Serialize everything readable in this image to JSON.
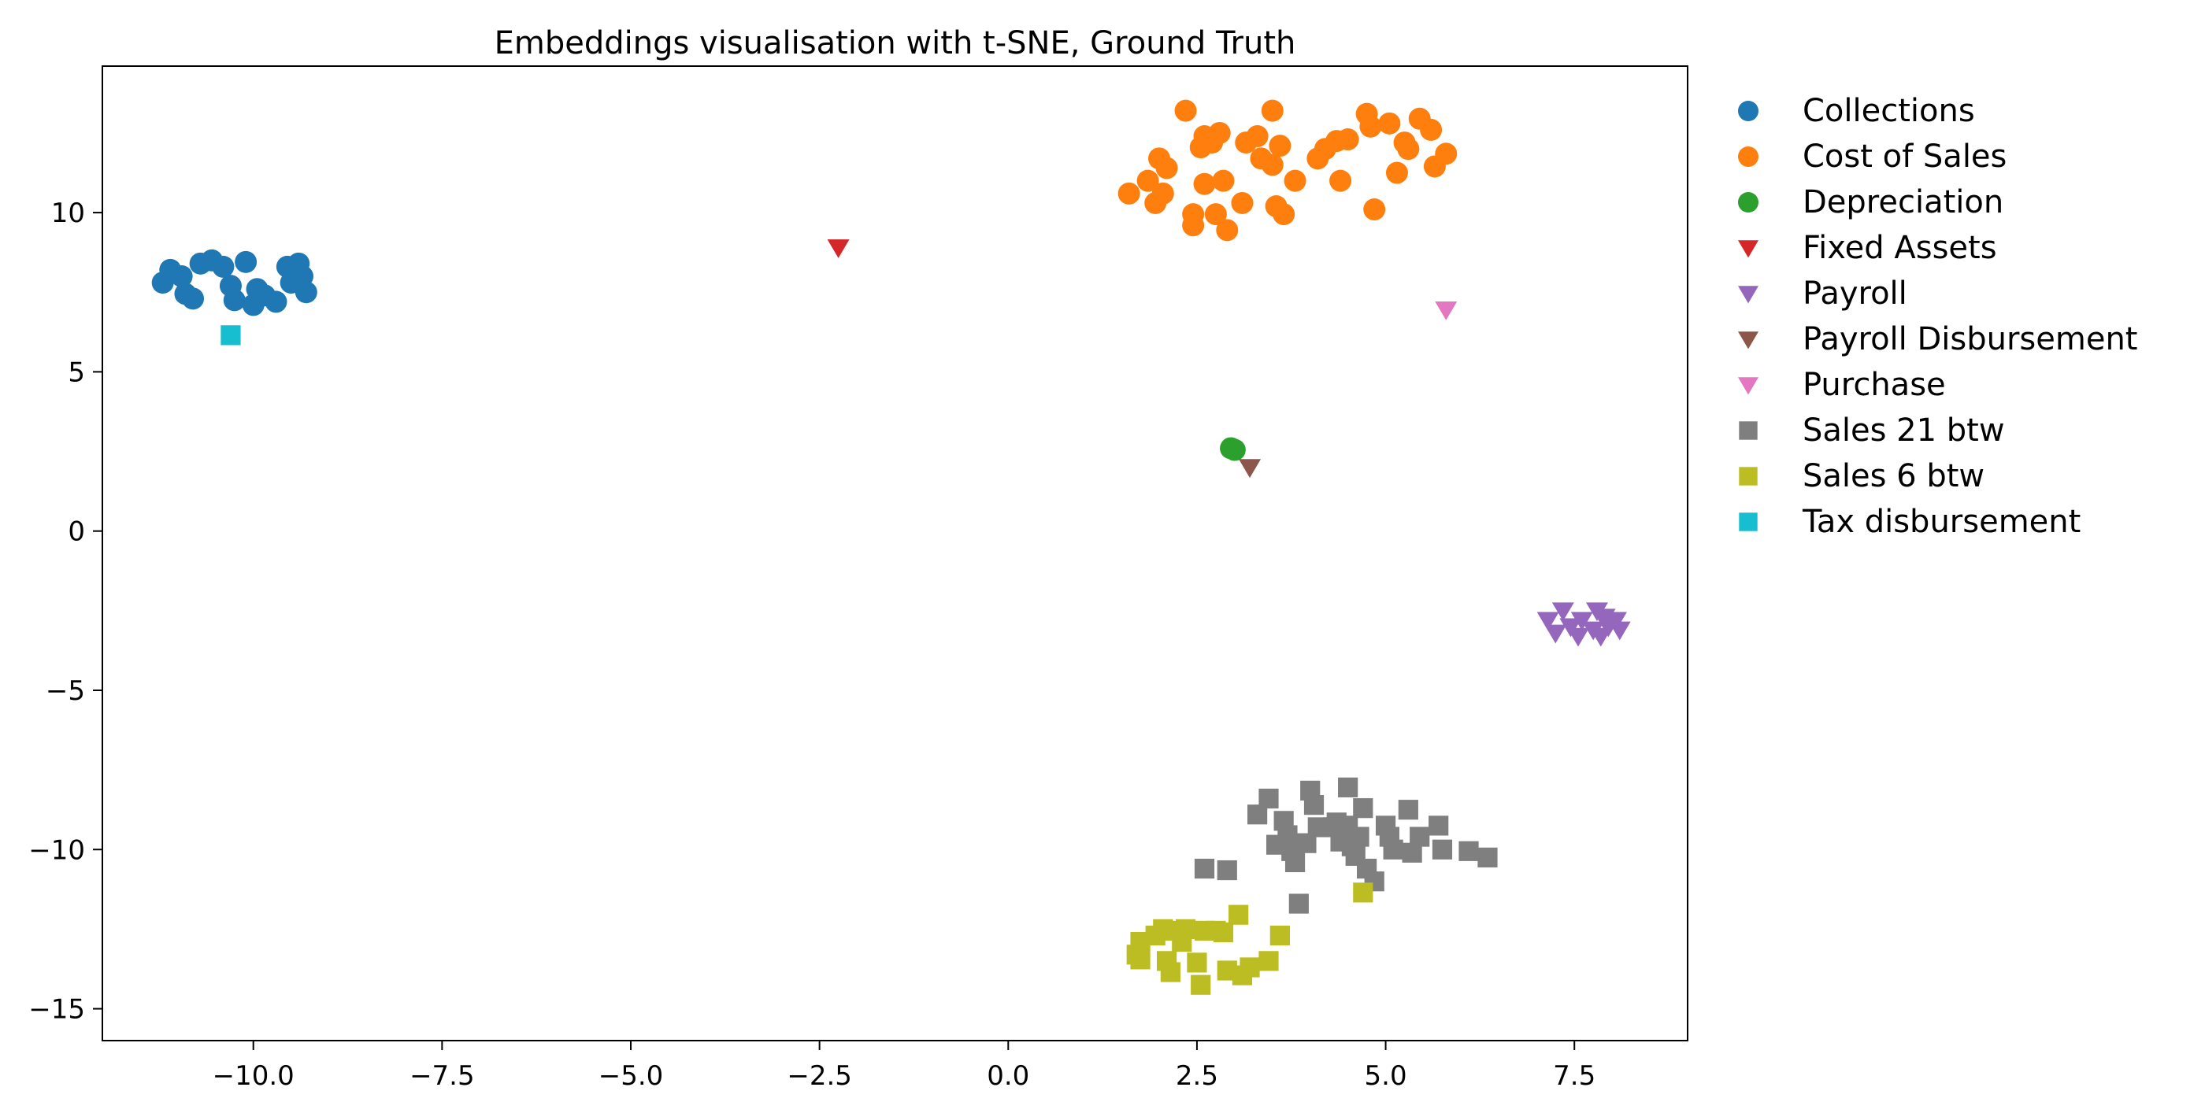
{
  "chart_data": {
    "type": "scatter",
    "title": "Embeddings visualisation with t-SNE, Ground Truth",
    "xlabel": "",
    "ylabel": "",
    "xlim": [
      -12.0,
      9.0
    ],
    "ylim": [
      -16.0,
      14.6
    ],
    "x_ticks": [
      -10.0,
      -7.5,
      -5.0,
      -2.5,
      0.0,
      2.5,
      5.0,
      7.5
    ],
    "x_tick_labels": [
      "−10.0",
      "−7.5",
      "−5.0",
      "−2.5",
      "0.0",
      "2.5",
      "5.0",
      "7.5"
    ],
    "y_ticks": [
      10,
      5,
      0,
      -5,
      -10,
      -15
    ],
    "y_tick_labels": [
      "10",
      "5",
      "0",
      "−5",
      "−10",
      "−15"
    ],
    "grid": false,
    "legend_position": "outside-right",
    "series": [
      {
        "name": "Collections",
        "color": "#1f77b4",
        "marker": "circle",
        "points": [
          [
            -11.2,
            7.8
          ],
          [
            -11.1,
            8.2
          ],
          [
            -10.95,
            8.0
          ],
          [
            -10.9,
            7.45
          ],
          [
            -10.8,
            7.3
          ],
          [
            -10.7,
            8.4
          ],
          [
            -10.55,
            8.5
          ],
          [
            -10.4,
            8.3
          ],
          [
            -10.3,
            7.7
          ],
          [
            -10.25,
            7.25
          ],
          [
            -10.1,
            8.45
          ],
          [
            -10.0,
            7.1
          ],
          [
            -9.95,
            7.6
          ],
          [
            -9.85,
            7.4
          ],
          [
            -9.7,
            7.2
          ],
          [
            -9.55,
            8.3
          ],
          [
            -9.5,
            7.8
          ],
          [
            -9.4,
            8.4
          ],
          [
            -9.35,
            8.0
          ],
          [
            -9.3,
            7.5
          ]
        ]
      },
      {
        "name": "Cost of Sales",
        "color": "#ff7f0e",
        "marker": "circle",
        "points": [
          [
            1.6,
            10.6
          ],
          [
            1.85,
            11.0
          ],
          [
            2.0,
            11.7
          ],
          [
            1.95,
            10.3
          ],
          [
            2.05,
            10.6
          ],
          [
            2.1,
            11.4
          ],
          [
            2.35,
            13.2
          ],
          [
            2.45,
            9.95
          ],
          [
            2.45,
            9.6
          ],
          [
            2.55,
            12.05
          ],
          [
            2.6,
            12.4
          ],
          [
            2.6,
            10.9
          ],
          [
            2.7,
            12.2
          ],
          [
            2.75,
            9.95
          ],
          [
            2.8,
            12.5
          ],
          [
            2.85,
            11.0
          ],
          [
            2.9,
            9.45
          ],
          [
            3.1,
            10.3
          ],
          [
            3.15,
            12.2
          ],
          [
            3.3,
            12.4
          ],
          [
            3.35,
            11.7
          ],
          [
            3.5,
            13.2
          ],
          [
            3.5,
            11.5
          ],
          [
            3.55,
            10.2
          ],
          [
            3.6,
            12.1
          ],
          [
            3.65,
            9.95
          ],
          [
            3.8,
            11.0
          ],
          [
            4.1,
            11.7
          ],
          [
            4.2,
            12.0
          ],
          [
            4.35,
            12.25
          ],
          [
            4.4,
            11.0
          ],
          [
            4.5,
            12.3
          ],
          [
            4.75,
            13.1
          ],
          [
            4.8,
            12.7
          ],
          [
            4.85,
            10.1
          ],
          [
            5.05,
            12.8
          ],
          [
            5.15,
            11.25
          ],
          [
            5.25,
            12.2
          ],
          [
            5.3,
            12.0
          ],
          [
            5.45,
            12.95
          ],
          [
            5.6,
            12.6
          ],
          [
            5.65,
            11.45
          ],
          [
            5.8,
            11.85
          ]
        ]
      },
      {
        "name": "Depreciation",
        "color": "#2ca02c",
        "marker": "circle",
        "points": [
          [
            2.95,
            2.6
          ],
          [
            3.0,
            2.55
          ]
        ]
      },
      {
        "name": "Fixed Assets",
        "color": "#d62728",
        "marker": "triangle-down",
        "points": [
          [
            -2.25,
            8.9
          ]
        ]
      },
      {
        "name": "Payroll",
        "color": "#9467bd",
        "marker": "triangle-down",
        "points": [
          [
            7.15,
            -2.8
          ],
          [
            7.25,
            -3.2
          ],
          [
            7.35,
            -2.5
          ],
          [
            7.45,
            -3.0
          ],
          [
            7.55,
            -3.3
          ],
          [
            7.6,
            -2.8
          ],
          [
            7.75,
            -3.1
          ],
          [
            7.8,
            -2.5
          ],
          [
            7.85,
            -3.3
          ],
          [
            7.9,
            -2.7
          ],
          [
            7.95,
            -3.0
          ],
          [
            8.05,
            -2.8
          ],
          [
            8.1,
            -3.1
          ]
        ]
      },
      {
        "name": "Payroll Disbursement",
        "color": "#8c564b",
        "marker": "triangle-down",
        "points": [
          [
            3.2,
            2.0
          ]
        ]
      },
      {
        "name": "Purchase",
        "color": "#e377c2",
        "marker": "triangle-down",
        "points": [
          [
            5.8,
            6.95
          ]
        ]
      },
      {
        "name": "Sales 21 btw",
        "color": "#7f7f7f",
        "marker": "square",
        "points": [
          [
            2.6,
            -10.6
          ],
          [
            2.9,
            -10.65
          ],
          [
            3.3,
            -8.9
          ],
          [
            3.45,
            -8.4
          ],
          [
            3.55,
            -9.85
          ],
          [
            3.65,
            -9.1
          ],
          [
            3.7,
            -9.55
          ],
          [
            3.75,
            -10.05
          ],
          [
            3.8,
            -10.4
          ],
          [
            3.85,
            -11.7
          ],
          [
            3.95,
            -9.8
          ],
          [
            4.0,
            -8.15
          ],
          [
            4.05,
            -8.6
          ],
          [
            4.1,
            -9.3
          ],
          [
            4.3,
            -9.3
          ],
          [
            4.35,
            -9.15
          ],
          [
            4.4,
            -9.75
          ],
          [
            4.5,
            -9.25
          ],
          [
            4.5,
            -8.05
          ],
          [
            4.55,
            -9.9
          ],
          [
            4.6,
            -10.2
          ],
          [
            4.65,
            -9.6
          ],
          [
            4.7,
            -8.7
          ],
          [
            4.75,
            -10.6
          ],
          [
            4.85,
            -11.0
          ],
          [
            5.0,
            -9.25
          ],
          [
            5.05,
            -9.6
          ],
          [
            5.1,
            -10.0
          ],
          [
            5.3,
            -8.75
          ],
          [
            5.35,
            -10.1
          ],
          [
            5.45,
            -9.6
          ],
          [
            5.7,
            -9.25
          ],
          [
            5.75,
            -10.0
          ],
          [
            6.1,
            -10.05
          ],
          [
            6.35,
            -10.25
          ]
        ]
      },
      {
        "name": "Sales 6 btw",
        "color": "#bcbd22",
        "marker": "square",
        "points": [
          [
            1.7,
            -13.3
          ],
          [
            1.75,
            -12.9
          ],
          [
            1.75,
            -13.45
          ],
          [
            1.95,
            -12.7
          ],
          [
            2.05,
            -12.5
          ],
          [
            2.1,
            -13.5
          ],
          [
            2.15,
            -13.85
          ],
          [
            2.2,
            -12.55
          ],
          [
            2.3,
            -12.9
          ],
          [
            2.35,
            -12.5
          ],
          [
            2.5,
            -13.55
          ],
          [
            2.55,
            -14.25
          ],
          [
            2.6,
            -12.55
          ],
          [
            2.75,
            -12.55
          ],
          [
            2.85,
            -12.6
          ],
          [
            2.9,
            -13.8
          ],
          [
            3.05,
            -12.05
          ],
          [
            3.1,
            -13.95
          ],
          [
            3.2,
            -13.7
          ],
          [
            3.45,
            -13.5
          ],
          [
            3.6,
            -12.7
          ],
          [
            4.7,
            -11.35
          ]
        ]
      },
      {
        "name": "Tax disbursement",
        "color": "#17becf",
        "marker": "square",
        "points": [
          [
            -10.3,
            6.15
          ]
        ]
      }
    ]
  }
}
